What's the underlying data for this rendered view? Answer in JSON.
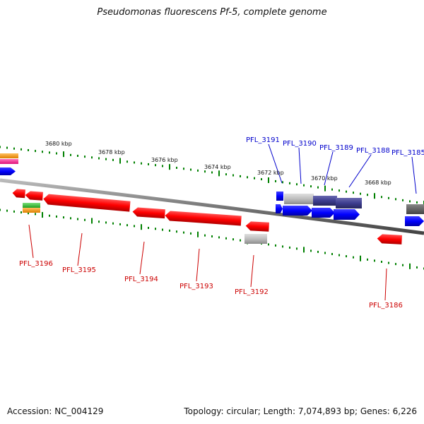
{
  "title": "Pseudomonas fluorescens Pf-5, complete genome",
  "footer": {
    "accession": "Accession: NC_004129",
    "summary": "Topology: circular; Length: 7,074,893 bp; Genes: 6,226"
  },
  "ticks": [
    {
      "label": "3680 kbp"
    },
    {
      "label": "3678 kbp"
    },
    {
      "label": "3676 kbp"
    },
    {
      "label": "3674 kbp"
    },
    {
      "label": "3672 kbp"
    },
    {
      "label": "3670 kbp"
    },
    {
      "label": "3668 kbp"
    }
  ],
  "forward_labels": [
    "PFL_3191",
    "PFL_3190",
    "PFL_3189",
    "PFL_3188",
    "PFL_3185"
  ],
  "reverse_labels": [
    "PFL_3196",
    "PFL_3195",
    "PFL_3194",
    "PFL_3193",
    "PFL_3192",
    "PFL_3186"
  ],
  "colors": {
    "forward_gene": "#0000ff",
    "reverse_gene": "#ff0000",
    "hypothetical_gene": "#bbbbbb",
    "dark_forward_gene": "#3d3d8f",
    "grey_gene": "#666666",
    "orange_gene": "#ff9900",
    "pink_gene": "#ff3399",
    "green_gene": "#33cc33",
    "backbone": "#888888",
    "tick": "#008000",
    "label_forward": "#0000cc",
    "label_reverse": "#cc0000"
  }
}
